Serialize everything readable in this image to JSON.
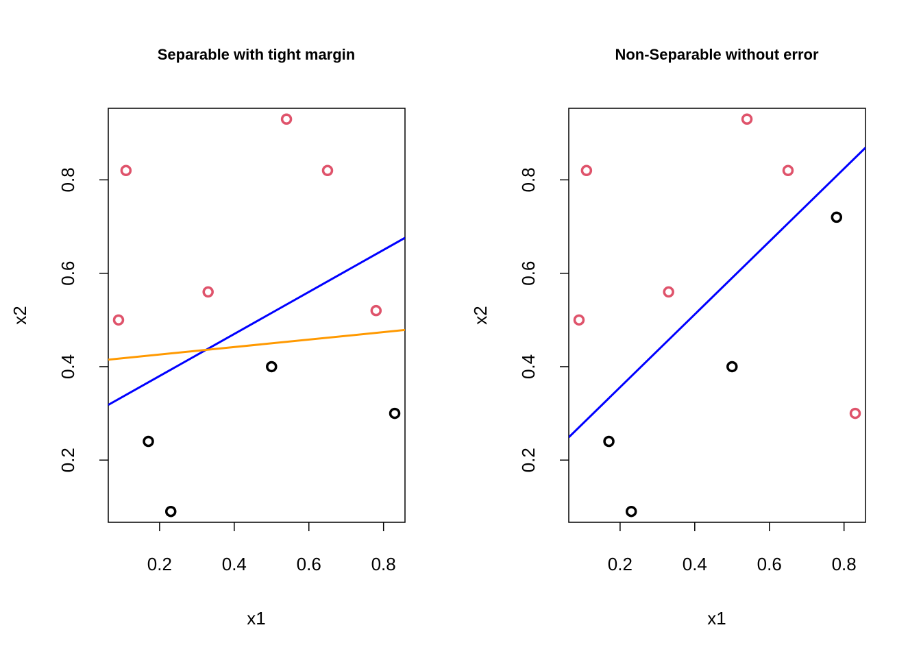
{
  "chart_data": [
    {
      "type": "scatter",
      "title": "Separable with tight margin",
      "xlabel": "x1",
      "ylabel": "x2",
      "xlim": [
        0.0625,
        0.8575
      ],
      "ylim": [
        0.0668,
        0.9532
      ],
      "x_ticks": [
        0.2,
        0.4,
        0.6,
        0.8
      ],
      "y_ticks": [
        0.2,
        0.4,
        0.6,
        0.8
      ],
      "grid": false,
      "legend": "none",
      "series": [
        {
          "color": "#000000",
          "marker": "open-circle",
          "points": [
            [
              0.17,
              0.24
            ],
            [
              0.23,
              0.09
            ],
            [
              0.5,
              0.4
            ],
            [
              0.83,
              0.3
            ]
          ]
        },
        {
          "color": "#DF536B",
          "marker": "open-circle",
          "points": [
            [
              0.09,
              0.5
            ],
            [
              0.11,
              0.82
            ],
            [
              0.33,
              0.56
            ],
            [
              0.54,
              0.93
            ],
            [
              0.65,
              0.82
            ],
            [
              0.78,
              0.52
            ]
          ]
        }
      ],
      "lines": [
        {
          "color": "#0000FF",
          "intercept": 0.29,
          "slope": 0.45
        },
        {
          "color": "#FF9900",
          "intercept": 0.41,
          "slope": 0.08
        }
      ]
    },
    {
      "type": "scatter",
      "title": "Non-Separable without error",
      "xlabel": "x1",
      "ylabel": "x2",
      "xlim": [
        0.0625,
        0.8575
      ],
      "ylim": [
        0.0668,
        0.9532
      ],
      "x_ticks": [
        0.2,
        0.4,
        0.6,
        0.8
      ],
      "y_ticks": [
        0.2,
        0.4,
        0.6,
        0.8
      ],
      "grid": false,
      "legend": "none",
      "series": [
        {
          "color": "#000000",
          "marker": "open-circle",
          "points": [
            [
              0.17,
              0.24
            ],
            [
              0.23,
              0.09
            ],
            [
              0.5,
              0.4
            ],
            [
              0.78,
              0.72
            ]
          ]
        },
        {
          "color": "#DF536B",
          "marker": "open-circle",
          "points": [
            [
              0.09,
              0.5
            ],
            [
              0.11,
              0.82
            ],
            [
              0.33,
              0.56
            ],
            [
              0.54,
              0.93
            ],
            [
              0.65,
              0.82
            ],
            [
              0.83,
              0.3
            ]
          ]
        }
      ],
      "lines": [
        {
          "color": "#0000FF",
          "intercept": 0.2,
          "slope": 0.78
        }
      ]
    }
  ]
}
